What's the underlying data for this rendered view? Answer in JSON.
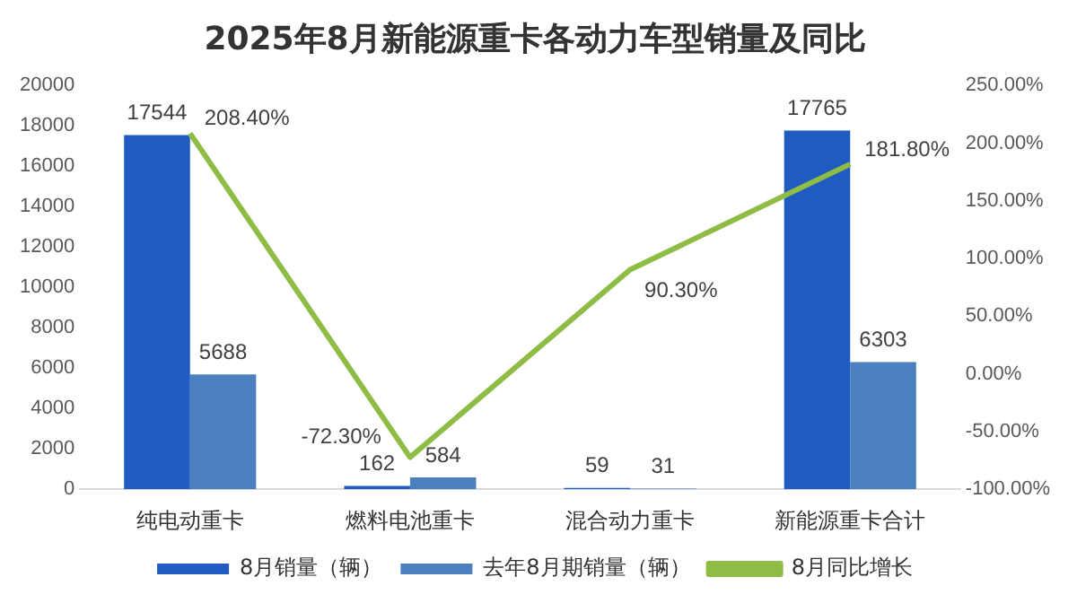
{
  "chart_data": {
    "type": "bar",
    "title": "2025年8月新能源重卡各动力车型销量及同比",
    "categories": [
      "纯电动重卡",
      "燃料电池重卡",
      "混合动力重卡",
      "新能源重卡合计"
    ],
    "series": [
      {
        "name": "8月销量（辆）",
        "color": "#1f5bc0",
        "values": [
          17544,
          162,
          59,
          17765
        ],
        "value_labels": [
          "17544",
          "162",
          "59",
          "17765"
        ]
      },
      {
        "name": "去年8月期销量（辆）",
        "color": "#4a7fc0",
        "values": [
          5688,
          584,
          31,
          6303
        ],
        "value_labels": [
          "5688",
          "584",
          "31",
          "6303"
        ]
      },
      {
        "name": "8月同比增长",
        "type": "line",
        "axis": "y2",
        "color": "#8fbc45",
        "values": [
          208.4,
          -72.3,
          90.3,
          181.8
        ],
        "value_labels": [
          "208.40%",
          "-72.30%",
          "90.30%",
          "181.80%"
        ]
      }
    ],
    "ylim": [
      0,
      20000
    ],
    "yticks": [
      0,
      2000,
      4000,
      6000,
      8000,
      10000,
      12000,
      14000,
      16000,
      18000,
      20000
    ],
    "y2lim": [
      -100,
      250
    ],
    "y2ticks": [
      {
        "value": -100,
        "label": "-100.00%"
      },
      {
        "value": -50,
        "label": "-50.00%"
      },
      {
        "value": 0,
        "label": "0.00%"
      },
      {
        "value": 50,
        "label": "50.00%"
      },
      {
        "value": 100,
        "label": "100.00%"
      },
      {
        "value": 150,
        "label": "150.00%"
      },
      {
        "value": 200,
        "label": "200.00%"
      },
      {
        "value": 250,
        "label": "250.00%"
      }
    ],
    "grid": false,
    "legend": "bottom",
    "marker": "none",
    "line_style": "solid"
  }
}
